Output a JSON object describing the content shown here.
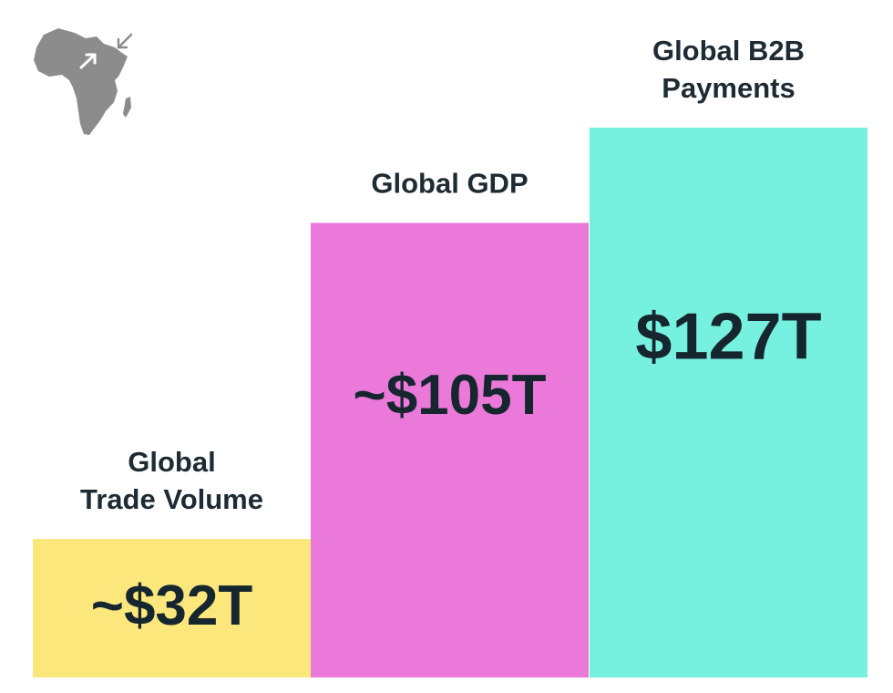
{
  "chart_data": {
    "type": "bar",
    "categories": [
      [
        "Global",
        "Trade Volume"
      ],
      [
        "Global GDP"
      ],
      [
        "Global B2B",
        "Payments"
      ]
    ],
    "values": [
      32,
      105,
      127
    ],
    "value_labels": [
      "~$32T",
      "~$105T",
      "$127T"
    ],
    "unit": "trillion USD",
    "colors": [
      "#fbe77c",
      "#eb79da",
      "#76f1e0"
    ],
    "title": "",
    "xlabel": "",
    "ylabel": "",
    "grid": false,
    "legend": "none"
  },
  "logo": {
    "icon": "africa-map-icon",
    "arrow_icons": [
      "arrow-in-icon",
      "arrow-out-icon"
    ],
    "color": "#8c8c8c"
  },
  "text_color": "#1d2b33"
}
